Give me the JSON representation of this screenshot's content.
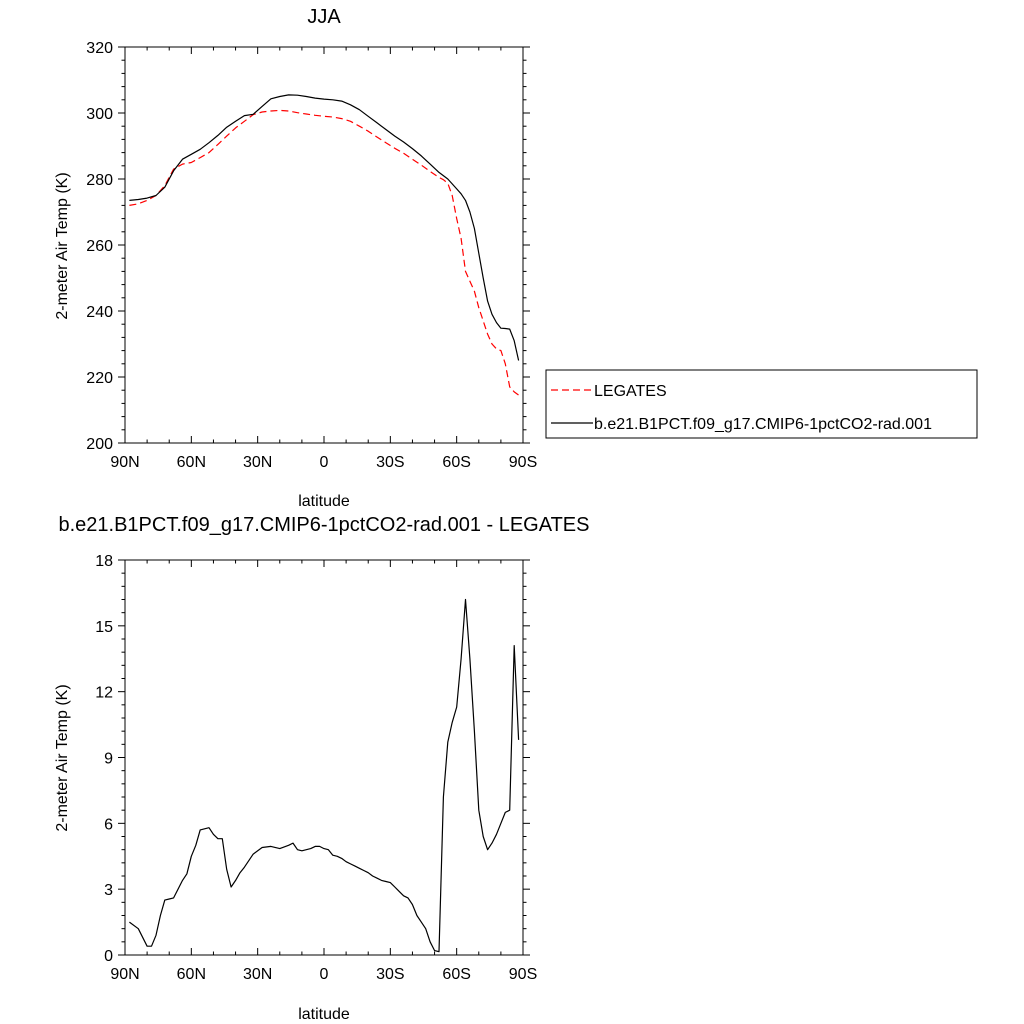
{
  "chart_data": [
    {
      "type": "line",
      "title": "JJA",
      "xlabel": "latitude",
      "ylabel": "2-meter Air Temp (K)",
      "ylim": [
        200,
        320
      ],
      "xlim": [
        90,
        -90
      ],
      "xticks": [
        90,
        60,
        30,
        0,
        -30,
        -60,
        -90
      ],
      "xtick_labels": [
        "90N",
        "60N",
        "30N",
        "0",
        "30S",
        "60S",
        "90S"
      ],
      "yticks": [
        200,
        220,
        240,
        260,
        280,
        300,
        320
      ],
      "ytick_labels": [
        "200",
        "220",
        "240",
        "260",
        "280",
        "300",
        "320"
      ],
      "legend": {
        "placement": "right",
        "entries": [
          "LEGATES",
          "b.e21.B1PCT.f09_g17.CMIP6-1pctCO2-rad.001"
        ]
      },
      "series": [
        {
          "name": "LEGATES",
          "color": "#ff0000",
          "dash": "dashed",
          "x": [
            88,
            84,
            80,
            76,
            72,
            68,
            64,
            60,
            56,
            52,
            48,
            44,
            40,
            36,
            32,
            28,
            24,
            20,
            16,
            12,
            8,
            4,
            0,
            -4,
            -8,
            -12,
            -16,
            -20,
            -24,
            -28,
            -32,
            -36,
            -40,
            -44,
            -48,
            -52,
            -54,
            -56,
            -58,
            -60,
            -62,
            -64,
            -66,
            -68,
            -70,
            -72,
            -74,
            -76,
            -78,
            -80,
            -82,
            -84,
            -86,
            -88
          ],
          "y": [
            272,
            272.5,
            273.5,
            275,
            278,
            283,
            284.5,
            285,
            286.5,
            288,
            290.5,
            293,
            295.5,
            297.5,
            299.5,
            300.3,
            300.6,
            300.8,
            300.6,
            300.1,
            299.7,
            299.3,
            299,
            298.8,
            298.3,
            297.5,
            296,
            294.5,
            292.7,
            291,
            289.3,
            287.8,
            286,
            284.2,
            282.3,
            280.5,
            279.8,
            278.7,
            275,
            268,
            262,
            252,
            249,
            246,
            241,
            237,
            233,
            230,
            228.5,
            228,
            224,
            217,
            215.5,
            214.5
          ]
        },
        {
          "name": "b.e21.B1PCT.f09_g17.CMIP6-1pctCO2-rad.001",
          "color": "#000000",
          "dash": "solid",
          "x": [
            88,
            84,
            80,
            76,
            72,
            68,
            64,
            60,
            56,
            52,
            48,
            44,
            40,
            36,
            32,
            28,
            24,
            20,
            16,
            12,
            8,
            4,
            0,
            -4,
            -8,
            -12,
            -16,
            -20,
            -24,
            -28,
            -32,
            -36,
            -40,
            -44,
            -48,
            -52,
            -56,
            -58,
            -60,
            -62,
            -64,
            -66,
            -68,
            -70,
            -72,
            -74,
            -76,
            -78,
            -80,
            -82,
            -84,
            -86,
            -88
          ],
          "y": [
            273.5,
            273.8,
            274.2,
            275,
            277.5,
            282.5,
            286,
            287.5,
            289,
            291,
            293.2,
            295.7,
            297.5,
            299.2,
            299.6,
            302,
            304.3,
            305,
            305.5,
            305.4,
            305,
            304.5,
            304.2,
            304,
            303.6,
            302.5,
            301,
            299,
            297,
            295,
            293,
            291.2,
            289.2,
            287,
            284.5,
            282,
            280,
            278.5,
            277,
            275.5,
            273.5,
            270,
            265,
            257.5,
            250,
            243,
            239,
            236.5,
            234.8,
            234.7,
            234.5,
            231,
            225
          ]
        }
      ]
    },
    {
      "type": "line",
      "title": "b.e21.B1PCT.f09_g17.CMIP6-1pctCO2-rad.001 - LEGATES",
      "xlabel": "latitude",
      "ylabel": "2-meter Air Temp (K)",
      "ylim": [
        0,
        18
      ],
      "xlim": [
        90,
        -90
      ],
      "xticks": [
        90,
        60,
        30,
        0,
        -30,
        -60,
        -90
      ],
      "xtick_labels": [
        "90N",
        "60N",
        "30N",
        "0",
        "30S",
        "60S",
        "90S"
      ],
      "yticks": [
        0,
        3,
        6,
        9,
        12,
        15,
        18
      ],
      "ytick_labels": [
        "0",
        "3",
        "6",
        "9",
        "12",
        "15",
        "18"
      ],
      "series": [
        {
          "color": "#000000",
          "dash": "solid",
          "x": [
            88,
            84,
            80,
            78,
            76,
            74,
            72,
            70,
            68,
            64,
            62,
            60,
            58,
            56,
            52,
            50,
            48,
            46,
            44,
            42,
            40,
            38,
            36,
            32,
            28,
            24,
            20,
            16,
            14,
            12,
            10,
            8,
            6,
            4,
            2,
            0,
            -2,
            -4,
            -6,
            -8,
            -10,
            -12,
            -14,
            -16,
            -18,
            -20,
            -22,
            -24,
            -26,
            -28,
            -30,
            -32,
            -34,
            -36,
            -38,
            -40,
            -42,
            -44,
            -46,
            -48,
            -50,
            -52,
            -54,
            -56,
            -58,
            -60,
            -62,
            -64,
            -66,
            -68,
            -70,
            -72,
            -74,
            -76,
            -78,
            -80,
            -82,
            -84,
            -86,
            -88
          ],
          "y": [
            1.5,
            1.2,
            0.4,
            0.4,
            0.9,
            1.8,
            2.5,
            2.55,
            2.6,
            3.4,
            3.7,
            4.5,
            5,
            5.7,
            5.8,
            5.5,
            5.3,
            5.3,
            3.9,
            3.1,
            3.4,
            3.75,
            4,
            4.6,
            4.9,
            4.95,
            4.85,
            5,
            5.1,
            4.8,
            4.75,
            4.8,
            4.85,
            4.95,
            4.95,
            4.85,
            4.8,
            4.55,
            4.5,
            4.4,
            4.25,
            4.15,
            4.05,
            3.95,
            3.85,
            3.75,
            3.6,
            3.5,
            3.4,
            3.35,
            3.3,
            3.1,
            2.9,
            2.7,
            2.6,
            2.3,
            1.8,
            1.5,
            1.2,
            0.6,
            0.2,
            0.15,
            7.2,
            9.7,
            10.6,
            11.3,
            13.5,
            16.2,
            13.5,
            10.2,
            6.6,
            5.4,
            4.8,
            5.1,
            5.5,
            6,
            6.5,
            6.6,
            14.1,
            9.8
          ]
        }
      ]
    }
  ]
}
